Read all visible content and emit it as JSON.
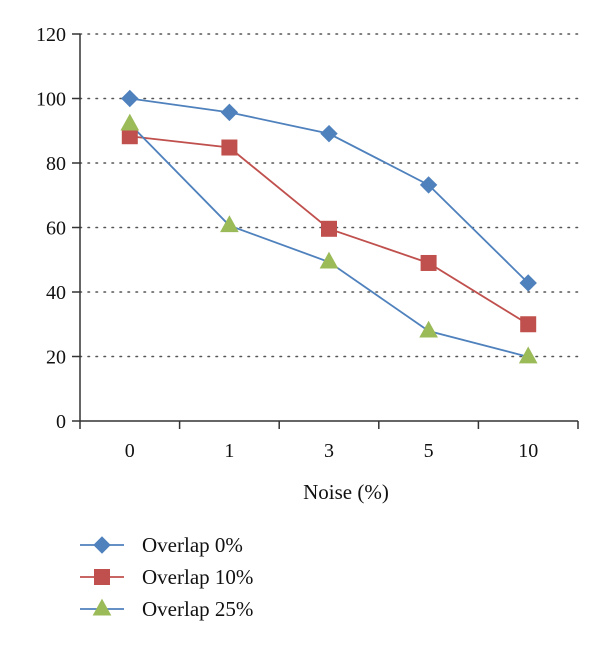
{
  "chart_data": {
    "type": "line",
    "title": "",
    "xlabel": "Noise (%)",
    "ylabel": "",
    "categories": [
      "0",
      "1",
      "3",
      "5",
      "10"
    ],
    "ylim": [
      0,
      120
    ],
    "yticks": [
      "0",
      "20",
      "40",
      "60",
      "80",
      "100",
      "120"
    ],
    "grid": "horizontal dotted",
    "legend_position": "bottom-left",
    "series": [
      {
        "name": "Overlap 0%",
        "values": [
          100,
          95.7,
          89.1,
          73.2,
          42.8
        ],
        "color": "#4f81bd",
        "marker": "diamond"
      },
      {
        "name": "Overlap 10%",
        "values": [
          88.3,
          84.8,
          59.6,
          49.0,
          30.0
        ],
        "color": "#c0504d",
        "marker": "square"
      },
      {
        "name": "Overlap 25%",
        "values": [
          92.1,
          60.6,
          49.3,
          27.9,
          19.9
        ],
        "color": "#9bbb59",
        "line_color": "#4f81bd",
        "marker": "triangle"
      }
    ]
  }
}
